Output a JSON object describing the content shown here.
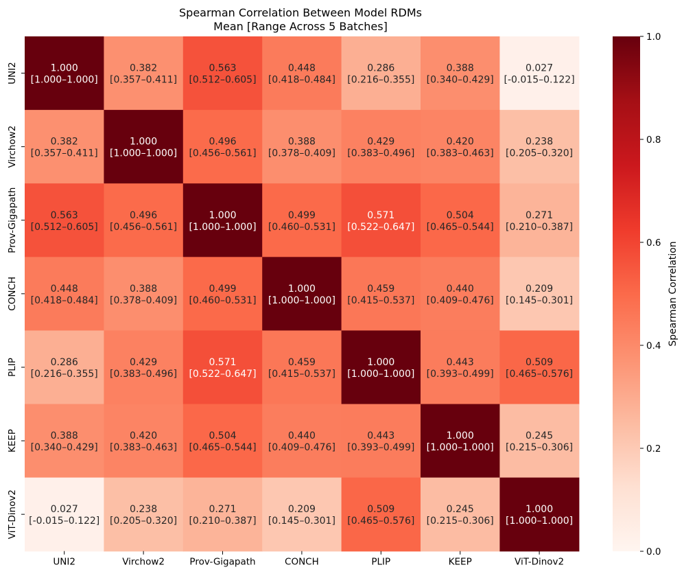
{
  "chart_data": {
    "type": "heatmap",
    "title": "Spearman Correlation Between Model RDMs",
    "subtitle": "Mean [Range Across 5 Batches]",
    "row_labels": [
      "UNI2",
      "Virchow2",
      "Prov-Gigapath",
      "CONCH",
      "PLIP",
      "KEEP",
      "ViT-Dinov2"
    ],
    "col_labels": [
      "UNI2",
      "Virchow2",
      "Prov-Gigapath",
      "CONCH",
      "PLIP",
      "KEEP",
      "ViT-Dinov2"
    ],
    "values": [
      [
        1.0,
        0.382,
        0.563,
        0.448,
        0.286,
        0.388,
        0.027
      ],
      [
        0.382,
        1.0,
        0.496,
        0.388,
        0.429,
        0.42,
        0.238
      ],
      [
        0.563,
        0.496,
        1.0,
        0.499,
        0.571,
        0.504,
        0.271
      ],
      [
        0.448,
        0.388,
        0.499,
        1.0,
        0.459,
        0.44,
        0.209
      ],
      [
        0.286,
        0.429,
        0.571,
        0.459,
        1.0,
        0.443,
        0.509
      ],
      [
        0.388,
        0.42,
        0.504,
        0.44,
        0.443,
        1.0,
        0.245
      ],
      [
        0.027,
        0.238,
        0.271,
        0.209,
        0.509,
        0.245,
        1.0
      ]
    ],
    "value_labels": [
      [
        "1.000",
        "0.382",
        "0.563",
        "0.448",
        "0.286",
        "0.388",
        "0.027"
      ],
      [
        "0.382",
        "1.000",
        "0.496",
        "0.388",
        "0.429",
        "0.420",
        "0.238"
      ],
      [
        "0.563",
        "0.496",
        "1.000",
        "0.499",
        "0.571",
        "0.504",
        "0.271"
      ],
      [
        "0.448",
        "0.388",
        "0.499",
        "1.000",
        "0.459",
        "0.440",
        "0.209"
      ],
      [
        "0.286",
        "0.429",
        "0.571",
        "0.459",
        "1.000",
        "0.443",
        "0.509"
      ],
      [
        "0.388",
        "0.420",
        "0.504",
        "0.440",
        "0.443",
        "1.000",
        "0.245"
      ],
      [
        "0.027",
        "0.238",
        "0.271",
        "0.209",
        "0.509",
        "0.245",
        "1.000"
      ]
    ],
    "range_labels": [
      [
        "[1.000–1.000]",
        "[0.357–0.411]",
        "[0.512–0.605]",
        "[0.418–0.484]",
        "[0.216–0.355]",
        "[0.340–0.429]",
        "[-0.015–0.122]"
      ],
      [
        "[0.357–0.411]",
        "[1.000–1.000]",
        "[0.456–0.561]",
        "[0.378–0.409]",
        "[0.383–0.496]",
        "[0.383–0.463]",
        "[0.205–0.320]"
      ],
      [
        "[0.512–0.605]",
        "[0.456–0.561]",
        "[1.000–1.000]",
        "[0.460–0.531]",
        "[0.522–0.647]",
        "[0.465–0.544]",
        "[0.210–0.387]"
      ],
      [
        "[0.418–0.484]",
        "[0.378–0.409]",
        "[0.460–0.531]",
        "[1.000–1.000]",
        "[0.415–0.537]",
        "[0.409–0.476]",
        "[0.145–0.301]"
      ],
      [
        "[0.216–0.355]",
        "[0.383–0.496]",
        "[0.522–0.647]",
        "[0.415–0.537]",
        "[1.000–1.000]",
        "[0.393–0.499]",
        "[0.465–0.576]"
      ],
      [
        "[0.340–0.429]",
        "[0.383–0.463]",
        "[0.465–0.544]",
        "[0.409–0.476]",
        "[0.393–0.499]",
        "[1.000–1.000]",
        "[0.215–0.306]"
      ],
      [
        "[-0.015–0.122]",
        "[0.205–0.320]",
        "[0.210–0.387]",
        "[0.145–0.301]",
        "[0.465–0.576]",
        "[0.215–0.306]",
        "[1.000–1.000]"
      ]
    ],
    "colorbar": {
      "label": "Spearman Correlation",
      "range": [
        0.0,
        1.0
      ],
      "ticks": [
        0.0,
        0.2,
        0.4,
        0.6,
        0.8,
        1.0
      ],
      "tick_labels": [
        "0.0",
        "0.2",
        "0.4",
        "0.6",
        "0.8",
        "1.0"
      ],
      "colormap": "Reds",
      "color_low": "#fff5f0",
      "color_high": "#67000d"
    }
  }
}
